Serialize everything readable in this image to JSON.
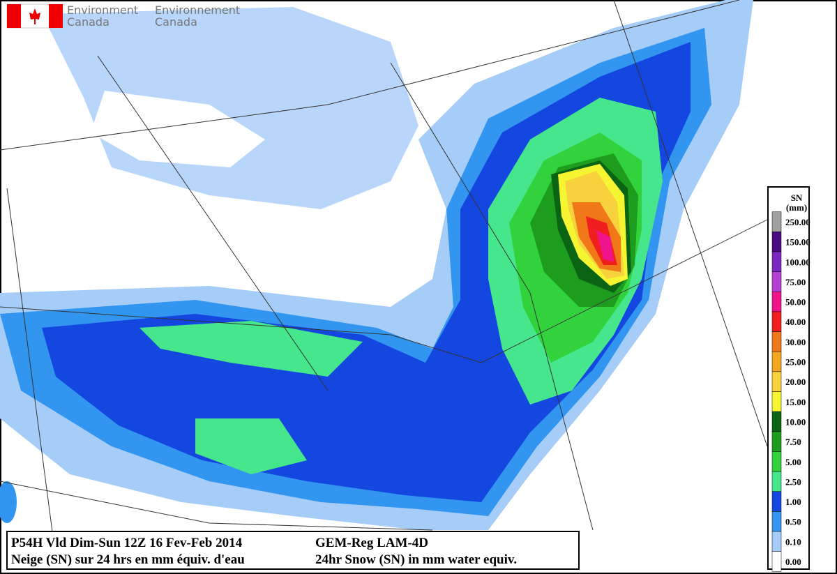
{
  "header": {
    "agency_en": "Environment",
    "agency_fr": "Environnement",
    "country_en": "Canada",
    "country_fr": "Canada"
  },
  "legend": {
    "title": "SN",
    "unit": "(mm)",
    "items": [
      {
        "label": "250.00",
        "color": "#a0a0a0"
      },
      {
        "label": "150.00",
        "color": "#4b0a82"
      },
      {
        "label": "100.00",
        "color": "#7a28c0"
      },
      {
        "label": "75.00",
        "color": "#b440d4"
      },
      {
        "label": "50.00",
        "color": "#f0148c"
      },
      {
        "label": "40.00",
        "color": "#f01e1e"
      },
      {
        "label": "30.00",
        "color": "#f07818"
      },
      {
        "label": "25.00",
        "color": "#f5a620"
      },
      {
        "label": "20.00",
        "color": "#f7d23c"
      },
      {
        "label": "15.00",
        "color": "#f5f532"
      },
      {
        "label": "10.00",
        "color": "#0a6414"
      },
      {
        "label": "7.50",
        "color": "#1e9c1e"
      },
      {
        "label": "5.00",
        "color": "#32d23c"
      },
      {
        "label": "2.50",
        "color": "#46e68c"
      },
      {
        "label": "1.00",
        "color": "#1446e0"
      },
      {
        "label": "0.50",
        "color": "#3296f0"
      },
      {
        "label": "0.10",
        "color": "#a6ccf8"
      },
      {
        "label": "0.00",
        "color": "#ffffff"
      }
    ]
  },
  "footer": {
    "left_line1": "P54H Vld Dim-Sun 12Z 16 Fev-Feb 2014",
    "left_line2": "Neige (SN) sur 24 hrs en mm équiv. d'eau",
    "right_line1": "GEM-Reg LAM-4D",
    "right_line2": "24hr Snow (SN) in mm water equiv."
  }
}
